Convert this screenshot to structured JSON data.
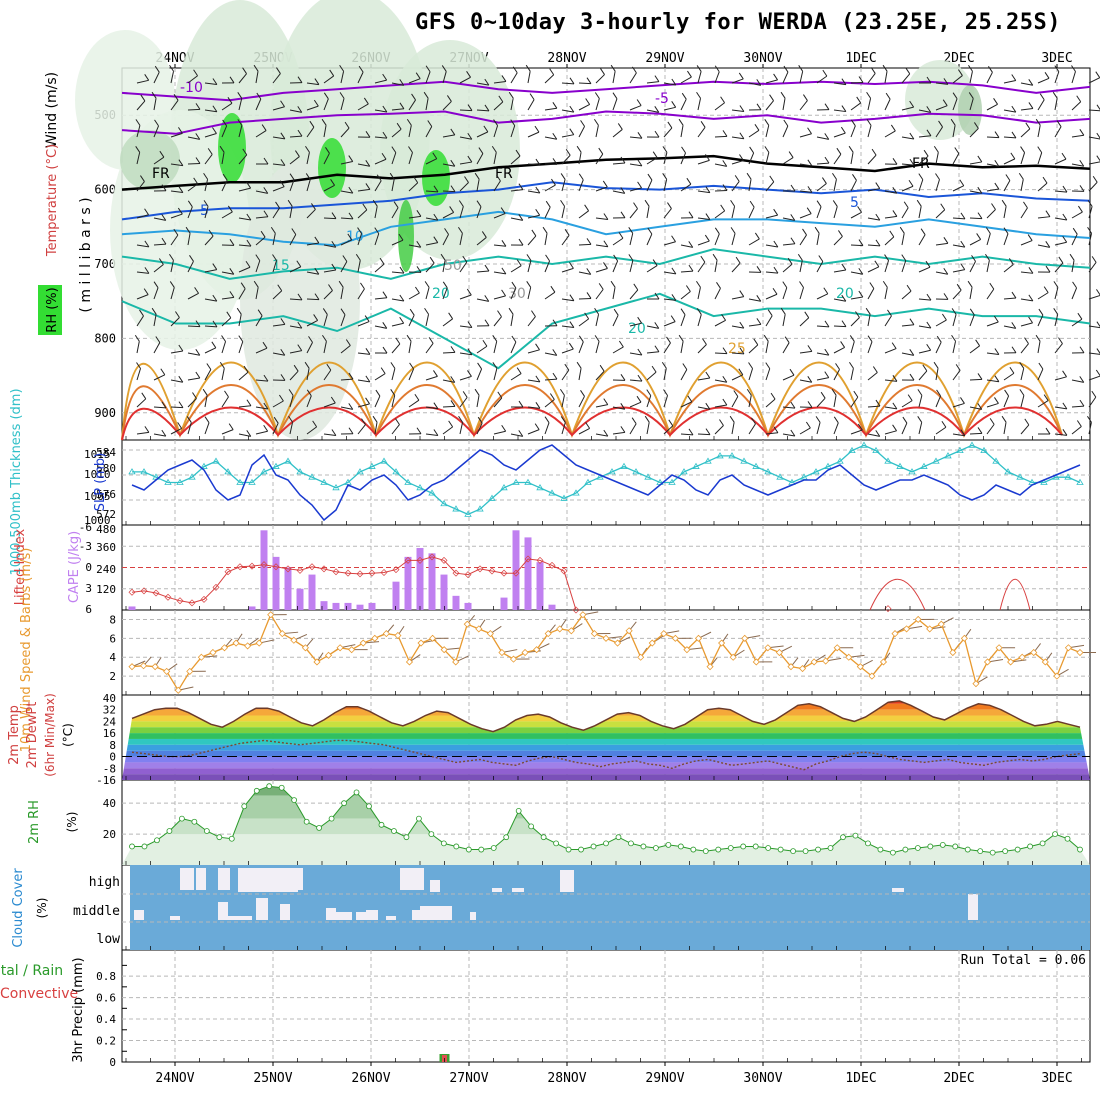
{
  "title": "GFS 0~10day 3-hourly for WERDA (23.25E, 25.25S)",
  "colors": {
    "grid": "#b8b8b8",
    "temp_cold": "#8800cc",
    "temp_blue": "#1a55d8",
    "temp_lightblue": "#2aa0e0",
    "temp_teal": "#1ab8a8",
    "temp_orange": "#e0a030",
    "temp_red": "#e03030",
    "rh_green": "#33dd33",
    "slp": "#1a3ad0",
    "thickness": "#30c0c8",
    "cape": "#c080f0",
    "lifted": "#d84040",
    "wind": "#e89a30",
    "barb": "#8a6a50",
    "rh2m": "#2a9a2a",
    "cloud": "#6aaad8",
    "clear": "#f2eff6"
  },
  "chart_data": [
    {
      "panel": "upper_air",
      "type": "heatmap",
      "date_labels": [
        "24NOV",
        "25NOV",
        "26NOV",
        "27NOV",
        "28NOV",
        "29NOV",
        "30NOV",
        "1DEC",
        "2DEC",
        "3DEC"
      ],
      "ylabel_parts": [
        "Wind (m/s)",
        "Temperature (°C)",
        "RH (%)",
        "( m i l l i b a r s )"
      ],
      "yticks": [
        "500",
        "600",
        "700",
        "800",
        "900"
      ],
      "isotherm_labels": [
        "-10",
        "-5",
        "FR",
        "FR",
        "FR",
        "5",
        "5",
        "10",
        "15",
        "20",
        "20",
        "20",
        "25",
        "50",
        "30"
      ],
      "isotherms": [
        {
          "label": "-10",
          "level_mb": [
            470,
            475,
            480,
            470,
            465,
            460,
            455,
            465,
            470,
            465,
            460,
            455,
            458,
            455,
            458,
            455,
            460,
            470,
            462
          ]
        },
        {
          "label": "-5",
          "level_mb": [
            520,
            525,
            510,
            505,
            500,
            498,
            495,
            510,
            505,
            495,
            498,
            505,
            500,
            510,
            505,
            498,
            500,
            510,
            505
          ]
        },
        {
          "label": "FR",
          "level_mb": [
            600,
            595,
            590,
            590,
            580,
            585,
            580,
            570,
            565,
            560,
            558,
            555,
            565,
            570,
            575,
            565,
            570,
            568,
            572
          ]
        },
        {
          "label": "5",
          "level_mb": [
            640,
            630,
            625,
            625,
            620,
            615,
            605,
            600,
            590,
            598,
            600,
            595,
            600,
            605,
            600,
            610,
            605,
            612,
            615
          ]
        },
        {
          "label": "10",
          "level_mb": [
            660,
            655,
            660,
            670,
            675,
            650,
            640,
            630,
            640,
            660,
            650,
            640,
            640,
            645,
            650,
            640,
            650,
            660,
            665
          ]
        },
        {
          "label": "15",
          "level_mb": [
            690,
            700,
            720,
            710,
            705,
            720,
            700,
            690,
            700,
            690,
            700,
            680,
            690,
            700,
            690,
            700,
            690,
            700,
            705
          ]
        },
        {
          "label": "20",
          "level_mb": [
            750,
            780,
            780,
            770,
            790,
            760,
            800,
            840,
            780,
            760,
            740,
            770,
            760,
            760,
            770,
            760,
            770,
            770,
            780
          ]
        }
      ]
    },
    {
      "panel": "pressure",
      "type": "line",
      "ylabel_left": "1000-500mb Thickness (dm)",
      "ylabel_right": "SLP (mb)",
      "yticks_left": [
        "584",
        "580",
        "576",
        "572"
      ],
      "yticks_right": [
        "1015",
        "1010",
        "1005",
        "1000"
      ],
      "series": [
        {
          "name": "SLP",
          "y": [
            1008,
            1007,
            1009,
            1011,
            1012,
            1013,
            1011,
            1007,
            1005,
            1006,
            1012,
            1014,
            1010,
            1009,
            1006,
            1004,
            1001,
            1003,
            1008,
            1007,
            1009,
            1010,
            1008,
            1005,
            1006,
            1008,
            1009,
            1011,
            1013,
            1015,
            1014,
            1012,
            1011,
            1013,
            1015,
            1016,
            1014,
            1012,
            1011,
            1010,
            1009,
            1008,
            1007,
            1006,
            1008,
            1010,
            1009,
            1007,
            1006,
            1009,
            1010,
            1008,
            1007,
            1006,
            1007,
            1008,
            1009,
            1009,
            1011,
            1012,
            1010,
            1008,
            1007,
            1008,
            1009,
            1009,
            1010,
            1009,
            1008,
            1006,
            1005,
            1006,
            1008,
            1007,
            1006,
            1008,
            1009,
            1010,
            1011,
            1012
          ]
        },
        {
          "name": "Thickness",
          "y": [
            580,
            580,
            579,
            578,
            578,
            579,
            581,
            582,
            580,
            578,
            578,
            580,
            581,
            582,
            580,
            579,
            578,
            577,
            578,
            580,
            581,
            582,
            580,
            578,
            577,
            576,
            574,
            573,
            572,
            573,
            575,
            577,
            578,
            578,
            577,
            576,
            575,
            576,
            578,
            579,
            580,
            581,
            580,
            579,
            578,
            578,
            580,
            581,
            582,
            583,
            583,
            582,
            581,
            580,
            579,
            578,
            579,
            580,
            581,
            582,
            584,
            585,
            584,
            582,
            581,
            580,
            581,
            582,
            583,
            584,
            585,
            584,
            582,
            580,
            579,
            578,
            578,
            579,
            579,
            578
          ]
        }
      ]
    },
    {
      "panel": "instability",
      "type": "bar",
      "ylabel_left": "Lifted Index",
      "ylabel_right": "CAPE (J/kg)",
      "yticks_left": [
        "-6",
        "-3",
        "0",
        "3",
        "6"
      ],
      "yticks_right": [
        "480",
        "360",
        "240",
        "120"
      ],
      "cape_values": [
        20,
        0,
        0,
        0,
        0,
        0,
        0,
        0,
        0,
        0,
        20,
        450,
        300,
        240,
        120,
        200,
        50,
        40,
        40,
        30,
        40,
        0,
        160,
        300,
        350,
        320,
        200,
        80,
        40,
        0,
        0,
        70,
        450,
        410,
        270,
        30,
        0,
        0,
        0,
        0,
        0,
        0,
        0,
        0,
        0,
        0,
        0,
        0,
        0,
        0,
        0,
        0,
        0,
        0,
        0,
        0,
        0,
        0,
        0,
        0,
        0,
        0,
        0,
        0,
        0,
        0,
        0,
        0,
        0,
        0,
        0,
        0,
        0,
        0,
        0,
        0,
        0,
        0,
        0,
        0
      ],
      "lifted_index": [
        3.5,
        3.3,
        3.6,
        4.2,
        4.7,
        5.0,
        4.5,
        2.8,
        0.6,
        -0.1,
        -0.2,
        -0.4,
        -0.1,
        0.2,
        0.4,
        -0.1,
        0.2,
        0.6,
        0.8,
        0.9,
        0.8,
        0.7,
        0.3,
        -1.0,
        -1.0,
        -1.5,
        -1.0,
        0.8,
        1.0,
        0.2,
        0.5,
        0.8,
        0.8,
        -1.2,
        -1.0,
        -0.3,
        0.5,
        6.0,
        null,
        null,
        null,
        null,
        null,
        null,
        null,
        null,
        null,
        null,
        null,
        null,
        null,
        null,
        null,
        null,
        null,
        null,
        null,
        null,
        null,
        null,
        null,
        null,
        null,
        5.8,
        null,
        null,
        null,
        null,
        null,
        null,
        null,
        null,
        null,
        null,
        null,
        null,
        null,
        null,
        null,
        null
      ]
    },
    {
      "panel": "wind10m",
      "type": "line",
      "ylabel": "10m Wind Speed & Barbs (m/s)",
      "yticks": [
        "8",
        "6",
        "4",
        "2"
      ],
      "y": [
        3.0,
        3.1,
        3.0,
        2.5,
        0.5,
        2.5,
        4.0,
        4.5,
        5.0,
        5.5,
        5.2,
        5.5,
        8.5,
        6.5,
        5.8,
        5.0,
        3.5,
        4.2,
        5.0,
        4.8,
        5.5,
        6.0,
        6.5,
        6.3,
        3.5,
        5.5,
        6.0,
        4.8,
        3.5,
        7.5,
        7.0,
        6.5,
        4.5,
        3.8,
        4.5,
        4.8,
        6.5,
        7.0,
        6.8,
        8.5,
        6.5,
        6.0,
        5.5,
        6.8,
        4.0,
        5.5,
        6.5,
        6.0,
        4.8,
        6.0,
        3.0,
        5.5,
        4.0,
        6.0,
        3.5,
        5.0,
        4.5,
        3.0,
        2.8,
        3.5,
        3.6,
        5.0,
        4.0,
        3.0,
        2.0,
        3.5,
        6.5,
        7.0,
        8.0,
        7.0,
        7.5,
        4.5,
        6.0,
        1.2,
        3.5,
        5.0,
        3.5,
        4.0,
        4.5,
        3.5,
        2.0,
        5.0,
        4.5
      ]
    },
    {
      "panel": "temperature2m",
      "type": "area",
      "ylabel": "2m Temp 2m DewPt (6hr Min/Max) (°C)",
      "yticks": [
        "40",
        "32",
        "24",
        "16",
        "8",
        "0",
        "-8",
        "-16"
      ],
      "temp": [
        26,
        29,
        32,
        33,
        33,
        30,
        26,
        22,
        20,
        24,
        29,
        33,
        33,
        31,
        27,
        23,
        21,
        25,
        30,
        34,
        34,
        31,
        27,
        23,
        21,
        24,
        28,
        31,
        30,
        26,
        22,
        19,
        17,
        20,
        25,
        28,
        29,
        27,
        23,
        20,
        18,
        21,
        25,
        29,
        30,
        28,
        24,
        21,
        19,
        22,
        27,
        32,
        33,
        32,
        28,
        24,
        22,
        25,
        30,
        35,
        36,
        34,
        30,
        26,
        24,
        27,
        32,
        37,
        38,
        35,
        31,
        27,
        25,
        29,
        33,
        36,
        35,
        32,
        28,
        24,
        21,
        22,
        24,
        22,
        20
      ],
      "dewpt": [
        3,
        2,
        1,
        0,
        0,
        1,
        3,
        5,
        7,
        9,
        10,
        11,
        10,
        9,
        8,
        9,
        10,
        11,
        11,
        10,
        9,
        8,
        6,
        4,
        2,
        0,
        -2,
        -4,
        -3,
        -2,
        -4,
        -5,
        -6,
        -3,
        -1,
        0,
        -2,
        -4,
        -5,
        -7,
        -5,
        -4,
        -3,
        -5,
        -6,
        -8,
        -5,
        -3,
        -2,
        -4,
        -6,
        -5,
        -4,
        -3,
        -5,
        -7,
        -9,
        -5,
        -3,
        0,
        2,
        3,
        2,
        0,
        -2,
        -3,
        -4,
        -3,
        -2,
        -4,
        -5,
        -6,
        -4,
        -3,
        -2,
        -3,
        -2,
        0,
        1,
        2
      ]
    },
    {
      "panel": "rh2m",
      "type": "area",
      "ylabel": "2m RH (%)",
      "yticks": [
        "40",
        "20"
      ],
      "y": [
        12,
        12,
        16,
        22,
        30,
        28,
        22,
        18,
        17,
        38,
        48,
        51,
        50,
        42,
        28,
        24,
        30,
        40,
        47,
        38,
        26,
        22,
        18,
        30,
        20,
        14,
        12,
        10,
        10,
        11,
        18,
        35,
        25,
        18,
        14,
        10,
        10,
        12,
        14,
        18,
        14,
        12,
        11,
        13,
        12,
        10,
        9,
        10,
        11,
        12,
        12,
        11,
        10,
        9,
        9,
        10,
        11,
        18,
        19,
        14,
        10,
        8,
        10,
        11,
        12,
        13,
        12,
        10,
        9,
        8,
        9,
        10,
        12,
        14,
        20,
        17,
        10
      ]
    },
    {
      "panel": "cloud",
      "type": "heatmap",
      "ylabel": "Cloud Cover (%)",
      "levels": [
        "high",
        "middle",
        "low"
      ],
      "note": "mostly overcast; gaps in high and middle layers"
    },
    {
      "panel": "precip",
      "type": "bar",
      "ylabel_parts": [
        "Total / Rain",
        "Convective",
        "3hr Precip (mm)"
      ],
      "yticks": [
        "0.8",
        "0.6",
        "0.4",
        "0.2",
        "0"
      ],
      "run_total": "Run Total = 0.06",
      "values": [
        {
          "date_index": 26.75,
          "total": 0.06
        }
      ]
    }
  ]
}
